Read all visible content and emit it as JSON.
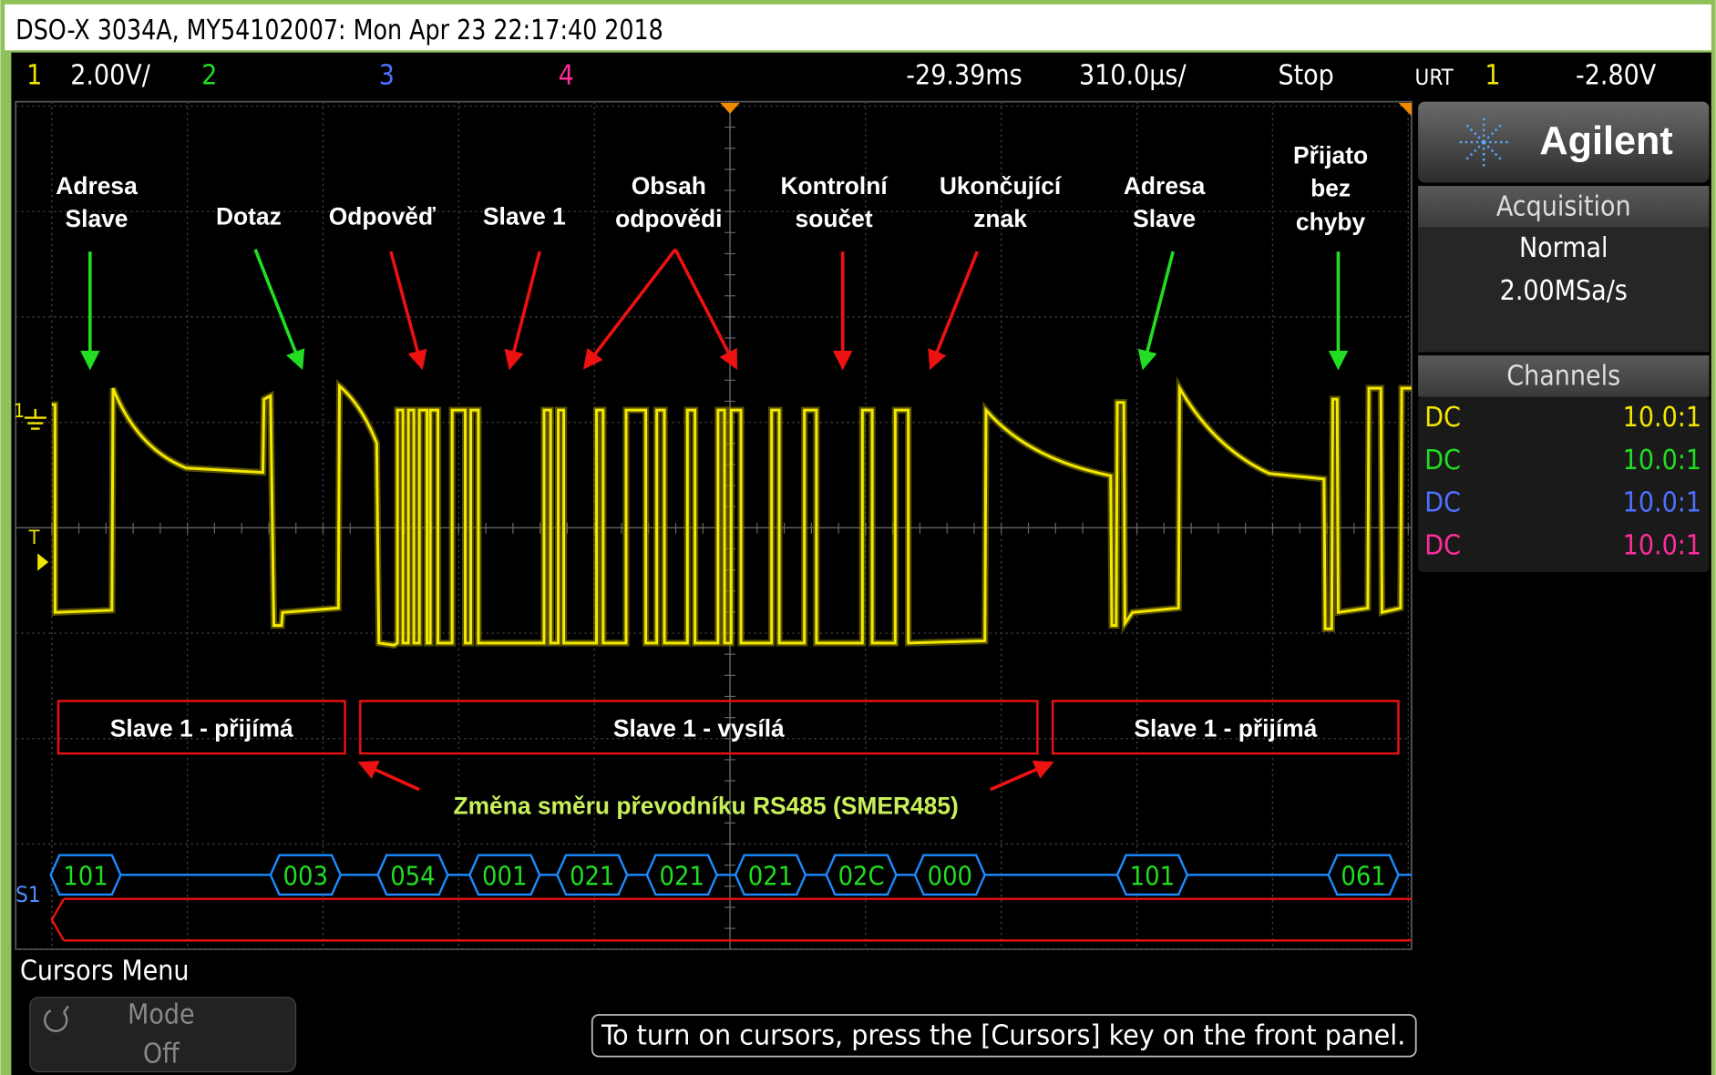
{
  "header": {
    "title": "DSO-X 3034A, MY54102007: Mon Apr 23 22:17:40 2018"
  },
  "status_bar": {
    "ch1": "1",
    "ch1_scale": "2.00V/",
    "ch2": "2",
    "ch3": "3",
    "ch4": "4",
    "delay": "-29.39ms",
    "timebase": "310.0µs/",
    "run_state": "Stop",
    "trigger_mode": "URT",
    "trigger_source": "1",
    "trigger_level": "-2.80V"
  },
  "markers": {
    "ch1": "1",
    "trigger": "T",
    "bus": "S1"
  },
  "side_panel": {
    "brand": "Agilent",
    "acquisition": {
      "title": "Acquisition",
      "mode": "Normal",
      "rate": "2.00MSa/s"
    },
    "channels": {
      "title": "Channels",
      "rows": [
        {
          "coupling": "DC",
          "probe": "10.0:1"
        },
        {
          "coupling": "DC",
          "probe": "10.0:1"
        },
        {
          "coupling": "DC",
          "probe": "10.0:1"
        },
        {
          "coupling": "DC",
          "probe": "10.0:1"
        }
      ]
    }
  },
  "annotations": [
    {
      "lines": [
        "Adresa",
        "Slave"
      ]
    },
    {
      "lines": [
        "Dotaz"
      ]
    },
    {
      "lines": [
        "Odpověď"
      ]
    },
    {
      "lines": [
        "Slave 1"
      ]
    },
    {
      "lines": [
        "Obsah",
        "odpovědi"
      ]
    },
    {
      "lines": [
        "Kontrolní",
        "součet"
      ]
    },
    {
      "lines": [
        "Ukončující",
        "znak"
      ]
    },
    {
      "lines": [
        "Adresa",
        "Slave"
      ]
    },
    {
      "lines": [
        "Přijato",
        "bez",
        "chyby"
      ]
    }
  ],
  "regions": [
    "Slave 1 - přijímá",
    "Slave 1 - vysílá",
    "Slave 1 - přijímá"
  ],
  "direction_note": "Změna směru převodníku RS485  (SMER485)",
  "decode": [
    "101",
    "003",
    "054",
    "001",
    "021",
    "021",
    "021",
    "02C",
    "000",
    "101",
    "061"
  ],
  "menu": {
    "title": "Cursors Menu",
    "softkey_label": "Mode",
    "softkey_value": "Off",
    "message": "To turn on cursors, press the [Cursors] key on the front panel."
  }
}
